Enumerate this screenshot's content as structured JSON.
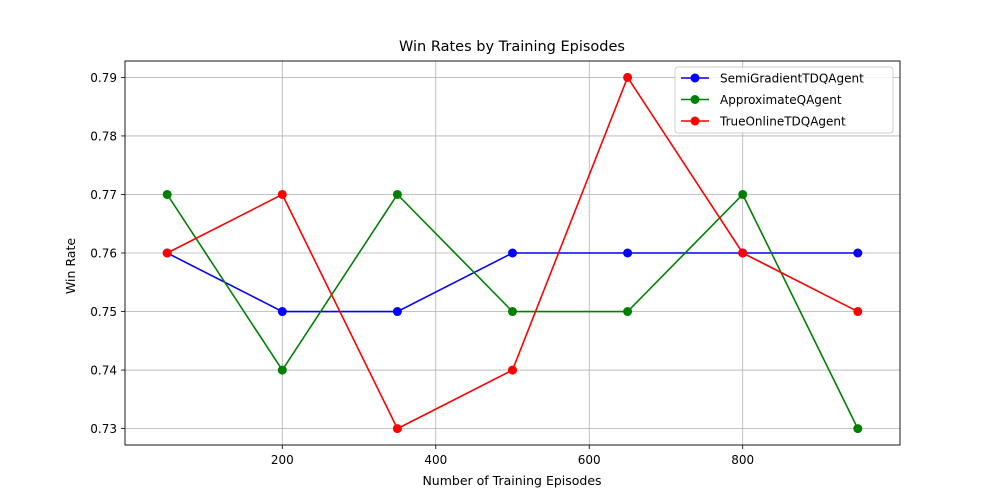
{
  "chart_data": {
    "type": "line",
    "title": "Win Rates by Training Episodes",
    "xlabel": "Number of Training Episodes",
    "ylabel": "Win Rate",
    "x": [
      50,
      200,
      350,
      500,
      650,
      800,
      950
    ],
    "xlim": [
      -5,
      1005
    ],
    "ylim": [
      0.7272,
      0.7928
    ],
    "xticks": [
      200,
      400,
      600,
      800
    ],
    "xtick_labels": [
      "200",
      "400",
      "600",
      "800"
    ],
    "yticks": [
      0.73,
      0.74,
      0.75,
      0.76,
      0.77,
      0.78,
      0.79
    ],
    "ytick_labels": [
      "0.73",
      "0.74",
      "0.75",
      "0.76",
      "0.77",
      "0.78",
      "0.79"
    ],
    "grid": true,
    "legend_position": "top-right",
    "series": [
      {
        "name": "SemiGradientTDQAgent",
        "color": "#0000ff",
        "values": [
          0.76,
          0.75,
          0.75,
          0.76,
          0.76,
          0.76,
          0.76
        ]
      },
      {
        "name": "ApproximateQAgent",
        "color": "#008000",
        "values": [
          0.77,
          0.74,
          0.77,
          0.75,
          0.75,
          0.77,
          0.73
        ]
      },
      {
        "name": "TrueOnlineTDQAgent",
        "color": "#ff0000",
        "values": [
          0.76,
          0.77,
          0.73,
          0.74,
          0.79,
          0.76,
          0.75
        ]
      }
    ]
  }
}
